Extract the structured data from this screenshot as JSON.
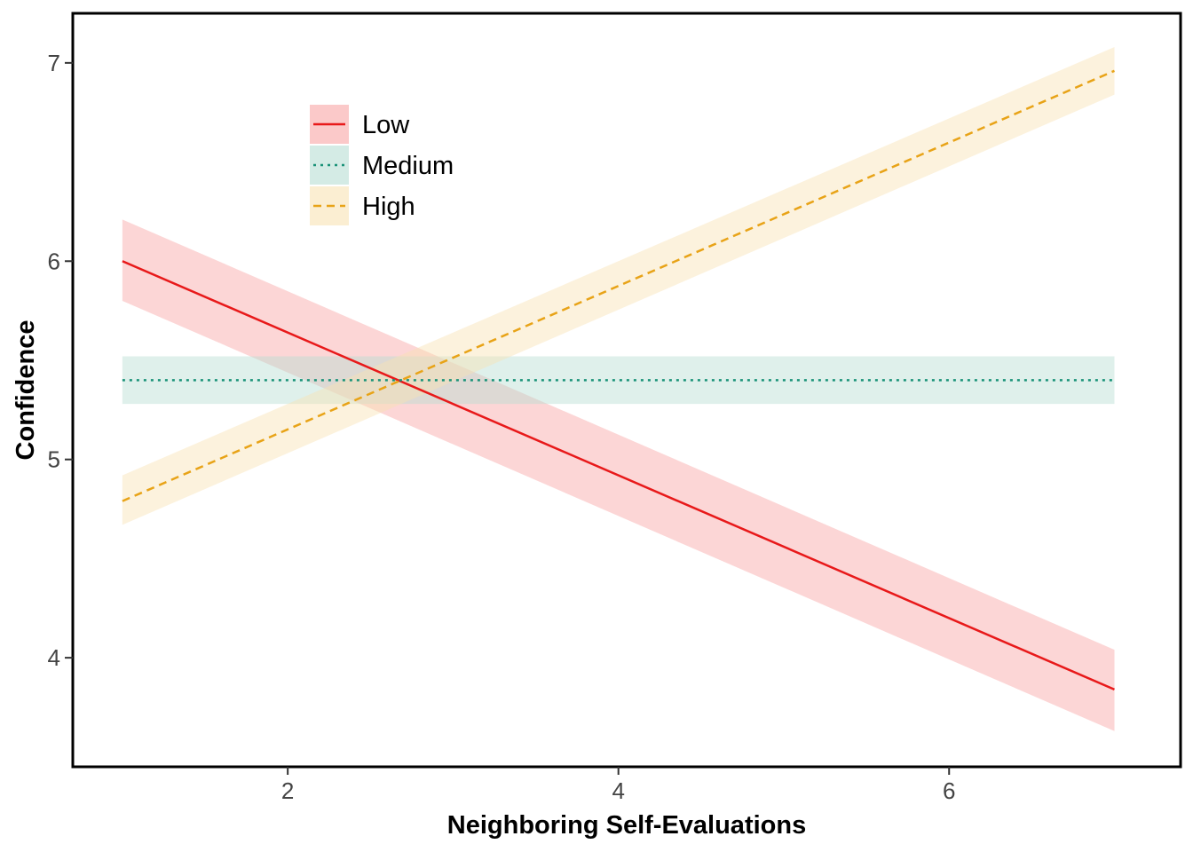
{
  "chart_data": {
    "type": "line",
    "title": "",
    "xlabel": "Neighboring Self-Evaluations",
    "ylabel": "Confidence",
    "xlim": [
      0.7,
      7.4
    ],
    "ylim": [
      3.45,
      7.25
    ],
    "x_ticks": [
      2,
      4,
      6
    ],
    "y_ticks": [
      4,
      5,
      6,
      7
    ],
    "x_tick_labels": [
      "2",
      "4",
      "6"
    ],
    "y_tick_labels": [
      "4",
      "5",
      "6",
      "7"
    ],
    "grid": false,
    "legend": {
      "placement": "top-left",
      "title": ""
    },
    "series": [
      {
        "name": "Low",
        "style": "solid",
        "color": "#e8191a",
        "band_color": "#f8a5a5",
        "x": [
          1,
          7
        ],
        "y": [
          6.0,
          3.84
        ],
        "lower": [
          5.8,
          3.63
        ],
        "upper": [
          6.21,
          4.04
        ]
      },
      {
        "name": "Medium",
        "style": "dotted",
        "color": "#1a9278",
        "band_color": "#b8ded3",
        "x": [
          1,
          7
        ],
        "y": [
          5.4,
          5.4
        ],
        "lower": [
          5.28,
          5.28
        ],
        "upper": [
          5.52,
          5.52
        ]
      },
      {
        "name": "High",
        "style": "dashed",
        "color": "#e8a317",
        "band_color": "#f9e3b4",
        "x": [
          1,
          7
        ],
        "y": [
          4.79,
          6.96
        ],
        "lower": [
          4.67,
          6.84
        ],
        "upper": [
          4.92,
          7.08
        ]
      }
    ]
  }
}
